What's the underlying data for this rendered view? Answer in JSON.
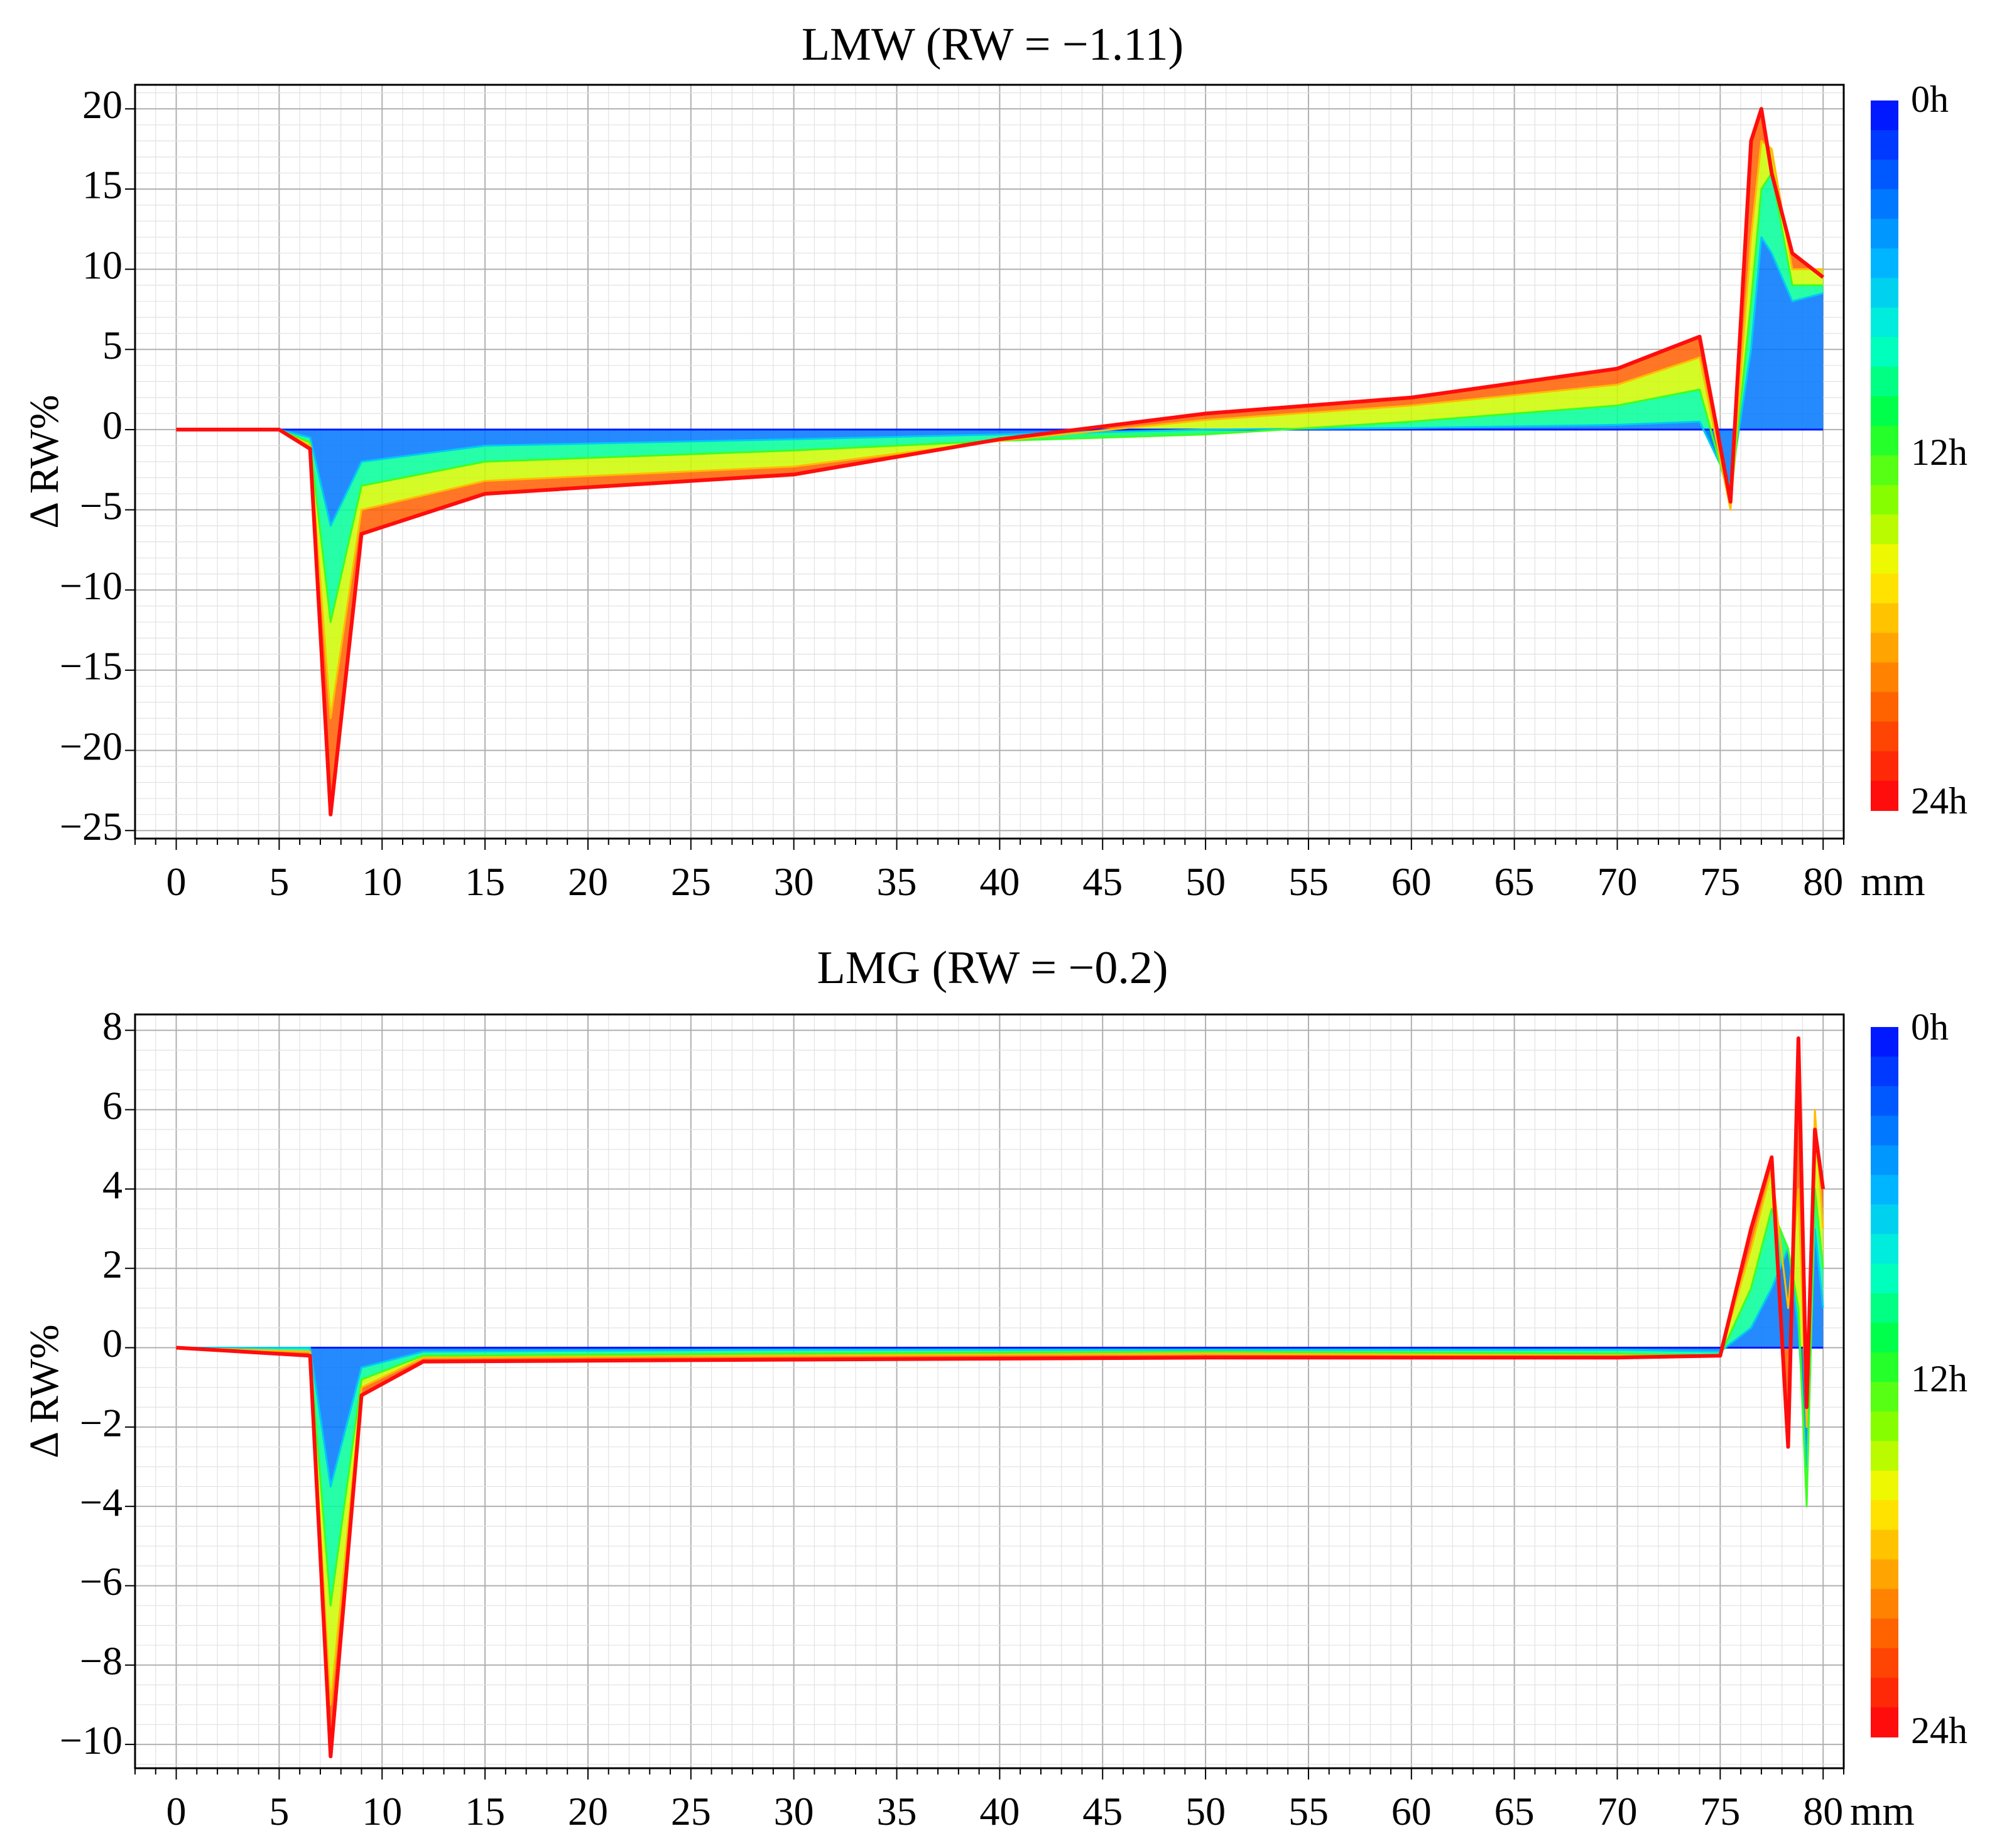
{
  "chart_data": [
    {
      "type": "line",
      "title": "LMW (RW = −1.11)",
      "ylabel": "Δ RW%",
      "xlabel": "mm",
      "xlim": [
        -2,
        81
      ],
      "ylim": [
        -25.5,
        21.5
      ],
      "x_ticks": [
        0,
        5,
        10,
        15,
        20,
        25,
        30,
        35,
        40,
        45,
        50,
        55,
        60,
        65,
        70,
        75,
        80
      ],
      "x_tick_labels": [
        "0",
        "5",
        "10",
        "15",
        "20",
        "25",
        "30",
        "35",
        "40",
        "45",
        "50",
        "55",
        "60",
        "65",
        "70",
        "75",
        "80"
      ],
      "y_ticks": [
        20,
        15,
        10,
        5,
        0,
        -5,
        -10,
        -15,
        -20,
        -25
      ],
      "y_tick_labels": [
        "20",
        "15",
        "10",
        "5",
        "0",
        "−5",
        "−10",
        "−15",
        "−20",
        "−25"
      ],
      "grid": true,
      "colorbar": {
        "labels": [
          "0h",
          "12h",
          "24h"
        ],
        "values": [
          0,
          12,
          24
        ]
      },
      "series_note": "25 hourly profiles from 0h (blue) to 24h (red)",
      "series": [
        {
          "name": "0h",
          "x": [
            0,
            5,
            6.5,
            7.5,
            9,
            15,
            30,
            40,
            50,
            60,
            70,
            74,
            75.5,
            76.5,
            77,
            77.5,
            78.5,
            80
          ],
          "values": [
            0,
            0,
            0,
            0,
            0,
            0,
            0,
            0,
            0,
            0,
            0,
            0,
            0,
            0,
            0,
            0,
            0,
            0
          ]
        },
        {
          "name": "6h",
          "x": [
            0,
            5,
            6.5,
            7.5,
            9,
            15,
            30,
            40,
            50,
            60,
            70,
            74,
            75.5,
            76.5,
            77,
            77.5,
            78.5,
            80
          ],
          "values": [
            0,
            0,
            -0.5,
            -6,
            -2,
            -1,
            -0.6,
            -0.3,
            0,
            0.1,
            0.3,
            0.5,
            -3.5,
            5,
            12,
            11,
            8,
            8.5
          ]
        },
        {
          "name": "12h",
          "x": [
            0,
            5,
            6.5,
            7.5,
            9,
            15,
            30,
            40,
            50,
            60,
            70,
            74,
            75.5,
            76.5,
            77,
            77.5,
            78.5,
            80
          ],
          "values": [
            0,
            0,
            -0.8,
            -12,
            -3.5,
            -2,
            -1.3,
            -0.7,
            -0.3,
            0.5,
            1.5,
            2.5,
            -4.5,
            8,
            15,
            16,
            9,
            9
          ]
        },
        {
          "name": "18h",
          "x": [
            0,
            5,
            6.5,
            7.5,
            9,
            15,
            30,
            40,
            50,
            60,
            70,
            74,
            75.5,
            76.5,
            77,
            77.5,
            78.5,
            80
          ],
          "values": [
            0,
            0,
            -1,
            -18,
            -5,
            -3.2,
            -2.3,
            -0.7,
            0.6,
            1.5,
            2.8,
            4.5,
            -5,
            12,
            18,
            17.5,
            10,
            10
          ]
        },
        {
          "name": "24h",
          "x": [
            0,
            5,
            6.5,
            7.5,
            9,
            15,
            30,
            40,
            50,
            60,
            70,
            74,
            75.5,
            76.5,
            77,
            77.5,
            78.5,
            80
          ],
          "values": [
            0,
            0,
            -1.2,
            -24,
            -6.5,
            -4,
            -2.8,
            -0.6,
            1,
            2,
            3.8,
            5.8,
            -4.5,
            18,
            20,
            16,
            11,
            9.5
          ]
        }
      ]
    },
    {
      "type": "line",
      "title": "LMG (RW = −0.2)",
      "ylabel": "Δ RW%",
      "xlabel": "mm",
      "xlim": [
        -2,
        81
      ],
      "ylim": [
        -10.6,
        8.4
      ],
      "x_ticks": [
        0,
        5,
        10,
        15,
        20,
        25,
        30,
        35,
        40,
        45,
        50,
        55,
        60,
        65,
        70,
        75,
        80
      ],
      "x_tick_labels": [
        "0",
        "5",
        "10",
        "15",
        "20",
        "25",
        "30",
        "35",
        "40",
        "45",
        "50",
        "55",
        "60",
        "65",
        "70",
        "75",
        "80"
      ],
      "y_ticks": [
        8,
        6,
        4,
        2,
        0,
        -2,
        -4,
        -6,
        -8,
        -10
      ],
      "y_tick_labels": [
        "8",
        "6",
        "4",
        "2",
        "0",
        "−2",
        "−4",
        "−6",
        "−8",
        "−10"
      ],
      "grid": true,
      "colorbar": {
        "labels": [
          "0h",
          "12h",
          "24h"
        ],
        "values": [
          0,
          12,
          24
        ]
      },
      "series_note": "25 hourly profiles from 0h (blue) to 24h (red)",
      "series": [
        {
          "name": "0h",
          "x": [
            0,
            6.5,
            7.5,
            9,
            12,
            30,
            50,
            70,
            75,
            76.5,
            77.5,
            78.3,
            78.8,
            79.2,
            79.6,
            80
          ],
          "values": [
            0,
            0,
            0,
            0,
            0,
            0,
            0,
            0,
            0,
            0,
            0,
            0,
            0,
            0,
            0,
            0
          ]
        },
        {
          "name": "6h",
          "x": [
            0,
            6.5,
            7.5,
            9,
            12,
            30,
            50,
            70,
            75,
            76.5,
            77.5,
            78.3,
            78.8,
            79.2,
            79.6,
            80
          ],
          "values": [
            0,
            0,
            -3.5,
            -0.5,
            -0.1,
            -0.05,
            -0.05,
            -0.05,
            -0.1,
            0.5,
            1.5,
            2.5,
            0.5,
            -3,
            3,
            1
          ]
        },
        {
          "name": "12h",
          "x": [
            0,
            6.5,
            7.5,
            9,
            12,
            30,
            50,
            70,
            75,
            76.5,
            77.5,
            78.3,
            78.8,
            79.2,
            79.6,
            80
          ],
          "values": [
            0,
            -0.1,
            -6.5,
            -0.8,
            -0.2,
            -0.15,
            -0.1,
            -0.15,
            -0.2,
            1.5,
            3.5,
            2.5,
            1,
            -4,
            4,
            2
          ]
        },
        {
          "name": "18h",
          "x": [
            0,
            6.5,
            7.5,
            9,
            12,
            30,
            50,
            70,
            75,
            76.5,
            77.5,
            78.3,
            78.8,
            79.2,
            79.6,
            80
          ],
          "values": [
            0,
            -0.1,
            -9,
            -1,
            -0.25,
            -0.2,
            -0.15,
            -0.2,
            -0.2,
            2.5,
            4.5,
            1,
            4,
            -2,
            6,
            3
          ]
        },
        {
          "name": "24h",
          "x": [
            0,
            6.5,
            7.5,
            9,
            12,
            30,
            50,
            70,
            75,
            76.5,
            77.5,
            78.3,
            78.8,
            79.2,
            79.6,
            80
          ],
          "values": [
            0,
            -0.2,
            -10.3,
            -1.2,
            -0.35,
            -0.3,
            -0.25,
            -0.25,
            -0.2,
            3,
            4.8,
            -2.5,
            7.8,
            -1.5,
            5.5,
            4
          ]
        }
      ]
    }
  ],
  "colors": {
    "axis": "#000000",
    "grid_major": "#b0b0b0",
    "grid_minor": "#e2e2e2",
    "colorbar": [
      "#0019ff",
      "#006bff",
      "#00b8ff",
      "#00ffd0",
      "#00ff3d",
      "#7bff00",
      "#fff700",
      "#ffa800",
      "#ff5400",
      "#ff0d0d"
    ]
  }
}
